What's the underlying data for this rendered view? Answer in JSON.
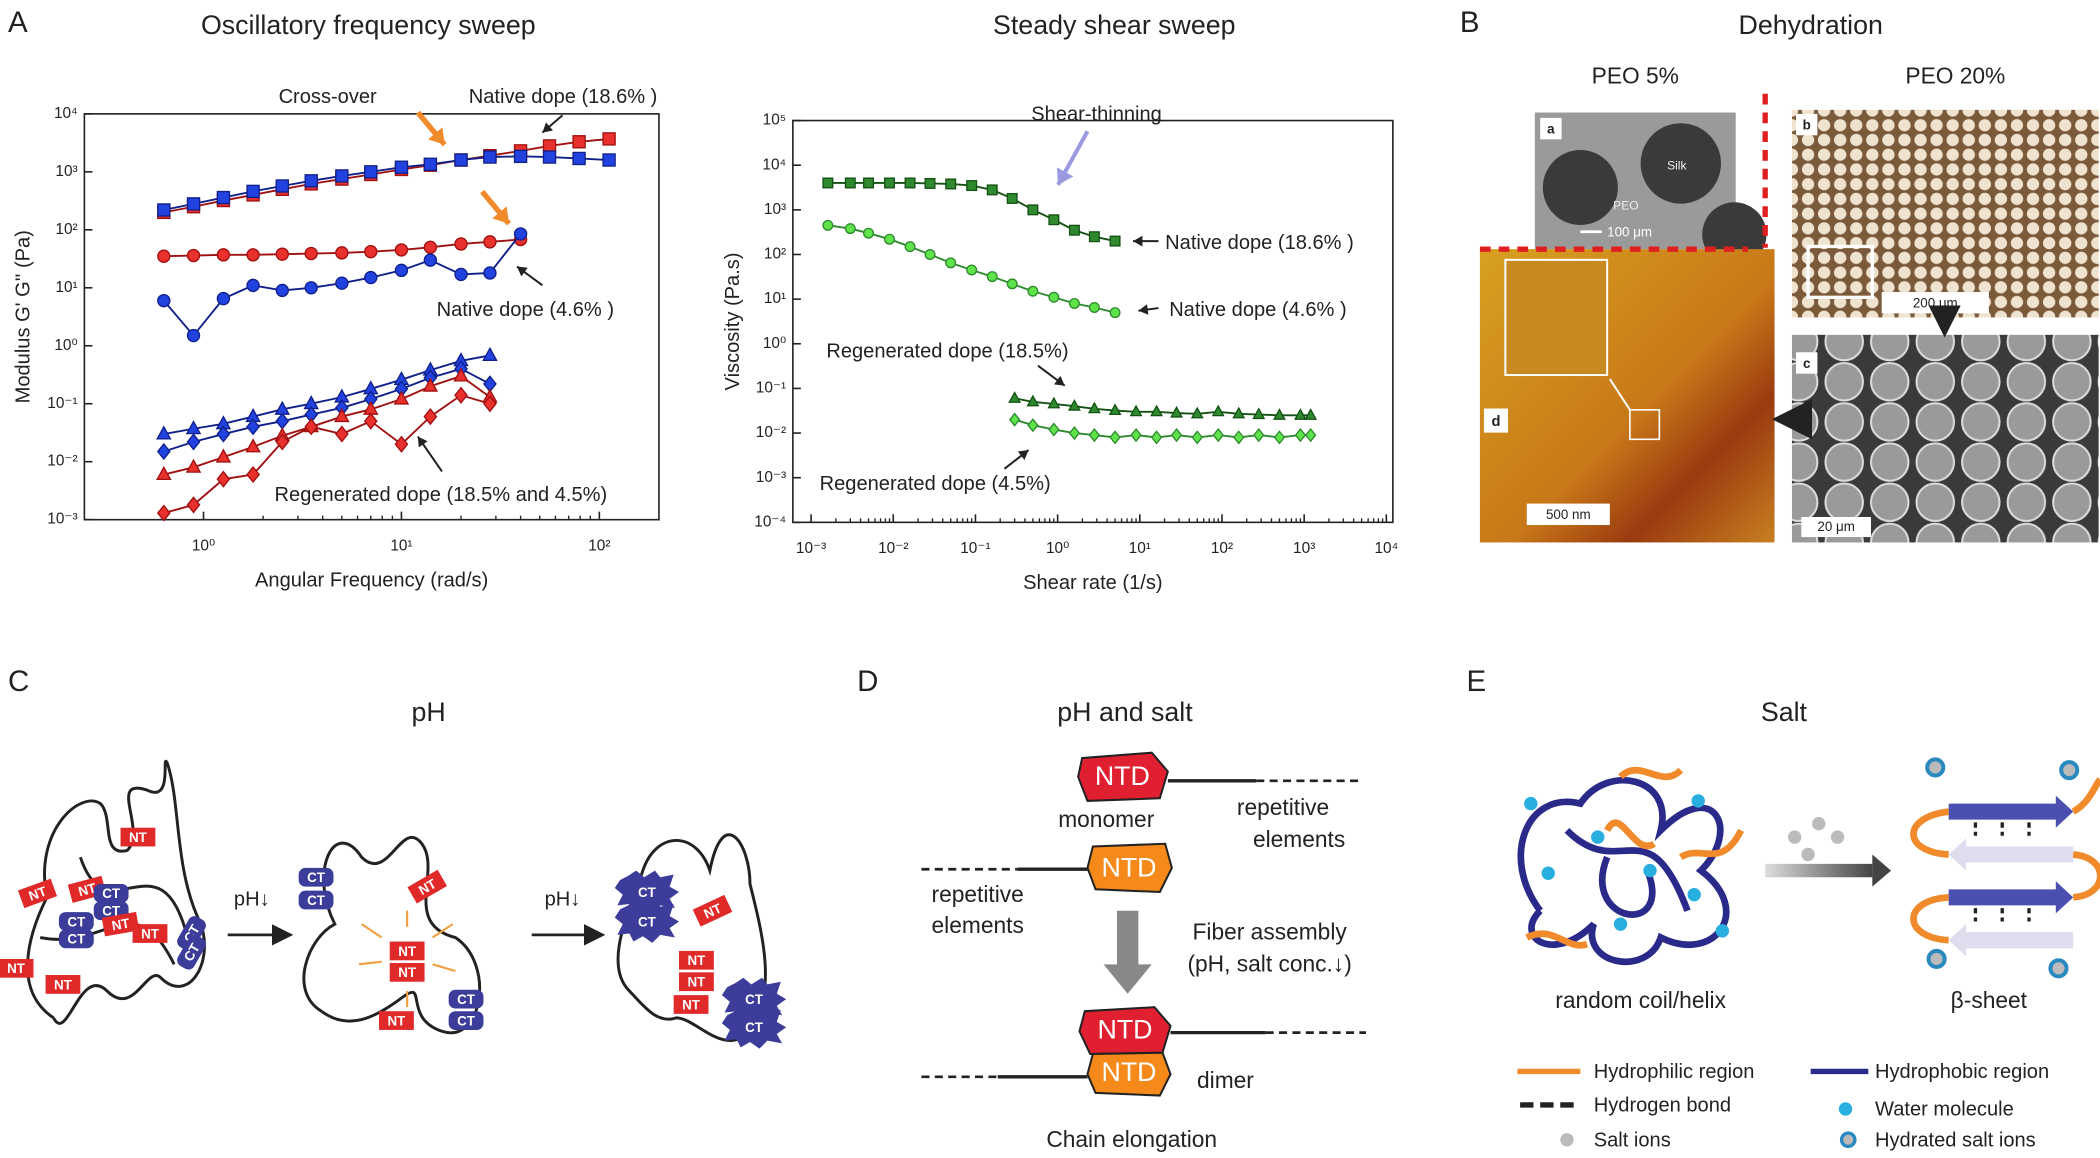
{
  "chart_data": [
    {
      "type": "line",
      "title": "Oscillatory frequency sweep",
      "xlabel": "Angular Frequency (rad/s)",
      "ylabel": "Modulus G' G'' (Pa)",
      "xscale": "log",
      "yscale": "log",
      "xlim": [
        0.25,
        200
      ],
      "ylim": [
        0.001,
        10000
      ],
      "xticks": [
        {
          "value": 1,
          "label": "10⁰"
        },
        {
          "value": 10,
          "label": "10¹"
        },
        {
          "value": 100,
          "label": "10²"
        }
      ],
      "yticks": [
        {
          "value": 0.001,
          "label": "10⁻³"
        },
        {
          "value": 0.01,
          "label": "10⁻²"
        },
        {
          "value": 0.1,
          "label": "10⁻¹"
        },
        {
          "value": 1,
          "label": "10⁰"
        },
        {
          "value": 10,
          "label": "10¹"
        },
        {
          "value": 100,
          "label": "10²"
        },
        {
          "value": 1000,
          "label": "10³"
        },
        {
          "value": 10000,
          "label": "10⁴"
        }
      ],
      "annotations": [
        "Cross-over",
        "Native dope (18.6% )",
        "Native dope (4.6% )",
        "Regenerated dope (18.5% and 4.5%)"
      ],
      "series": [
        {
          "color": "#e8302c",
          "edgecolor": "#a01010",
          "marker": "square",
          "x": [
            0.63,
            0.89,
            1.26,
            1.78,
            2.5,
            3.5,
            5,
            7,
            10,
            14,
            20,
            28,
            40,
            56,
            79,
            112
          ],
          "values": [
            200,
            250,
            320,
            400,
            500,
            620,
            750,
            900,
            1100,
            1300,
            1600,
            1900,
            2300,
            2800,
            3300,
            3700
          ]
        },
        {
          "color": "#2242e0",
          "edgecolor": "#10208a",
          "marker": "square",
          "x": [
            0.63,
            0.89,
            1.26,
            1.78,
            2.5,
            3.5,
            5,
            7,
            10,
            14,
            20,
            28,
            40,
            56,
            79,
            112
          ],
          "values": [
            220,
            280,
            360,
            460,
            570,
            700,
            850,
            1000,
            1200,
            1350,
            1600,
            1800,
            1850,
            1800,
            1700,
            1600
          ]
        },
        {
          "color": "#e8302c",
          "edgecolor": "#a01010",
          "marker": "circle",
          "x": [
            0.63,
            0.89,
            1.26,
            1.78,
            2.5,
            3.5,
            5,
            7,
            10,
            14,
            20,
            28,
            40
          ],
          "values": [
            35,
            36,
            37,
            37,
            38,
            39,
            40,
            42,
            45,
            50,
            57,
            62,
            68
          ]
        },
        {
          "color": "#2242e0",
          "edgecolor": "#10208a",
          "marker": "circle",
          "x": [
            0.63,
            0.89,
            1.26,
            1.78,
            2.5,
            3.5,
            5,
            7,
            10,
            14,
            20,
            28,
            40
          ],
          "values": [
            6,
            1.5,
            6.5,
            11,
            9,
            10,
            12,
            15,
            20,
            30,
            17,
            18,
            85
          ]
        },
        {
          "color": "#2242e0",
          "edgecolor": "#10208a",
          "marker": "triangle",
          "x": [
            0.63,
            0.89,
            1.26,
            1.78,
            2.5,
            3.5,
            5,
            7,
            10,
            14,
            20,
            28
          ],
          "values": [
            0.03,
            0.037,
            0.045,
            0.06,
            0.08,
            0.1,
            0.13,
            0.18,
            0.26,
            0.38,
            0.55,
            0.68
          ]
        },
        {
          "color": "#2242e0",
          "edgecolor": "#10208a",
          "marker": "diamond",
          "x": [
            0.63,
            0.89,
            1.26,
            1.78,
            2.5,
            3.5,
            5,
            7,
            10,
            14,
            20,
            28
          ],
          "values": [
            0.015,
            0.022,
            0.03,
            0.04,
            0.05,
            0.065,
            0.085,
            0.12,
            0.18,
            0.28,
            0.4,
            0.22
          ]
        },
        {
          "color": "#e8302c",
          "edgecolor": "#a01010",
          "marker": "triangle",
          "x": [
            0.63,
            0.89,
            1.26,
            1.78,
            2.5,
            3.5,
            5,
            7,
            10,
            14,
            20,
            28
          ],
          "values": [
            0.006,
            0.008,
            0.012,
            0.018,
            0.028,
            0.04,
            0.06,
            0.08,
            0.12,
            0.2,
            0.3,
            0.13
          ]
        },
        {
          "color": "#e8302c",
          "edgecolor": "#a01010",
          "marker": "diamond",
          "x": [
            0.63,
            0.89,
            1.26,
            1.78,
            2.5,
            3.5,
            5,
            7,
            10,
            14,
            20,
            28
          ],
          "values": [
            0.0013,
            0.0018,
            0.005,
            0.006,
            0.022,
            0.04,
            0.03,
            0.05,
            0.02,
            0.06,
            0.14,
            0.1
          ]
        }
      ]
    },
    {
      "type": "line",
      "title": "Steady shear sweep",
      "xlabel": "Shear rate (1/s)",
      "ylabel": "Viscosity (Pa.s)",
      "xscale": "log",
      "yscale": "log",
      "xlim": [
        0.0006,
        12000
      ],
      "ylim": [
        0.0001,
        100000
      ],
      "xticks": [
        {
          "value": 0.001,
          "label": "10⁻³"
        },
        {
          "value": 0.01,
          "label": "10⁻²"
        },
        {
          "value": 0.1,
          "label": "10⁻¹"
        },
        {
          "value": 1,
          "label": "10⁰"
        },
        {
          "value": 10,
          "label": "10¹"
        },
        {
          "value": 100,
          "label": "10²"
        },
        {
          "value": 1000,
          "label": "10³"
        },
        {
          "value": 10000,
          "label": "10⁴"
        }
      ],
      "yticks": [
        {
          "value": 0.0001,
          "label": "10⁻⁴"
        },
        {
          "value": 0.001,
          "label": "10⁻³"
        },
        {
          "value": 0.01,
          "label": "10⁻²"
        },
        {
          "value": 0.1,
          "label": "10⁻¹"
        },
        {
          "value": 1,
          "label": "10⁰"
        },
        {
          "value": 10,
          "label": "10¹"
        },
        {
          "value": 100,
          "label": "10²"
        },
        {
          "value": 1000,
          "label": "10³"
        },
        {
          "value": 10000,
          "label": "10⁴"
        },
        {
          "value": 100000,
          "label": "10⁵"
        }
      ],
      "annotations": [
        "Shear-thinning",
        "Native dope (18.6% )",
        "Native dope (4.6% )",
        "Regenerated dope (18.5%)",
        "Regenerated dope (4.5%)"
      ],
      "series": [
        {
          "color": "#2f8a2f",
          "edgecolor": "#145214",
          "marker": "square",
          "x": [
            0.0016,
            0.003,
            0.005,
            0.009,
            0.016,
            0.028,
            0.05,
            0.09,
            0.16,
            0.28,
            0.5,
            0.9,
            1.6,
            2.8,
            5
          ],
          "values": [
            4000,
            4000,
            4000,
            4000,
            4000,
            3900,
            3800,
            3500,
            2800,
            1800,
            1000,
            600,
            350,
            250,
            200
          ]
        },
        {
          "color": "#5ee34a",
          "edgecolor": "#2f8a2f",
          "marker": "circle",
          "x": [
            0.0016,
            0.003,
            0.005,
            0.009,
            0.016,
            0.028,
            0.05,
            0.09,
            0.16,
            0.28,
            0.5,
            0.9,
            1.6,
            2.8,
            5
          ],
          "values": [
            450,
            380,
            300,
            220,
            150,
            100,
            65,
            45,
            32,
            22,
            15,
            11,
            8,
            6.5,
            5
          ]
        },
        {
          "color": "#2f8a2f",
          "edgecolor": "#145214",
          "marker": "triangle",
          "x": [
            0.3,
            0.5,
            0.9,
            1.6,
            2.8,
            5,
            9,
            16,
            28,
            50,
            90,
            160,
            280,
            500,
            900,
            1200
          ],
          "values": [
            0.06,
            0.05,
            0.045,
            0.04,
            0.035,
            0.032,
            0.03,
            0.03,
            0.028,
            0.027,
            0.03,
            0.027,
            0.026,
            0.025,
            0.025,
            0.025
          ]
        },
        {
          "color": "#5ee34a",
          "edgecolor": "#2f8a2f",
          "marker": "diamond",
          "x": [
            0.3,
            0.5,
            0.9,
            1.6,
            2.8,
            5,
            9,
            16,
            28,
            50,
            90,
            160,
            280,
            500,
            900,
            1200
          ],
          "values": [
            0.02,
            0.015,
            0.012,
            0.01,
            0.009,
            0.008,
            0.009,
            0.008,
            0.009,
            0.008,
            0.009,
            0.008,
            0.009,
            0.008,
            0.009,
            0.009
          ]
        }
      ]
    }
  ],
  "panel_labels": [
    "A",
    "B",
    "C",
    "D",
    "E"
  ],
  "panel_b": {
    "title": "Dehydration",
    "left": "PEO 5%",
    "right": "PEO 20%",
    "a": "a",
    "silk": "Silk",
    "peo": "PEO",
    "a_scale": "100 μm",
    "b": "b",
    "b_scale": "200 μm",
    "c": "c",
    "c_scale": "20 μm",
    "d": "d",
    "d_scale": "500 nm"
  },
  "panel_c": {
    "title": "pH",
    "step": "pH↓",
    "tags": [
      "NT",
      "NT",
      "NT",
      "CT",
      "CT",
      "CT",
      "CT",
      "NT",
      "NT",
      "CT",
      "CT",
      "NT",
      "NT",
      "CT",
      "CT",
      "NT",
      "NT",
      "NT",
      "CT",
      "CT",
      "NT",
      "CT",
      "CT",
      "NT",
      "NT",
      "NT",
      "NT",
      "CT",
      "CT"
    ]
  },
  "panel_d": {
    "title": "pH and salt",
    "ntd": "NTD",
    "monomer": "monomer",
    "rep1": "repetitive",
    "rep2": "elements",
    "assembly": "Fiber assembly",
    "conditions": "(pH, salt conc.↓)",
    "dimer": "dimer",
    "caption": "Chain elongation"
  },
  "panel_e": {
    "title": "Salt",
    "left": "random coil/helix",
    "right": "β-sheet",
    "legend": [
      "Hydrophilic region",
      "Hydrophobic region",
      "Hydrogen bond",
      "Water molecule",
      "Salt ions",
      "Hydrated salt ions"
    ]
  }
}
